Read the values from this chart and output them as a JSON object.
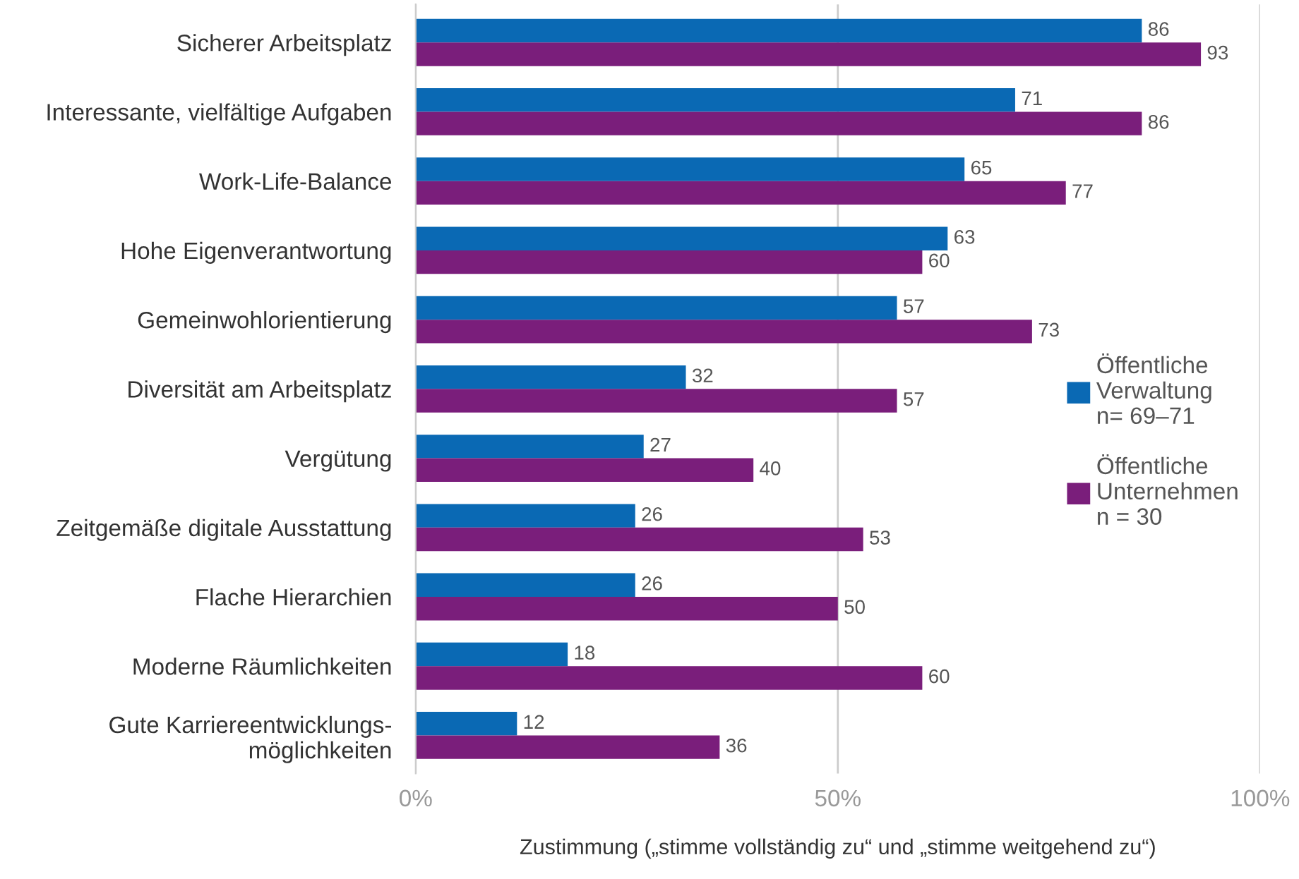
{
  "chart_data": {
    "type": "bar",
    "orientation": "horizontal",
    "categories": [
      "Sicherer Arbeitsplatz",
      "Interessante, vielfältige Aufgaben",
      "Work-Life-Balance",
      "Hohe Eigenverantwortung",
      "Gemeinwohlorientierung",
      "Diversität am Arbeitsplatz",
      "Vergütung",
      "Zeitgemäße digitale Ausstattung",
      "Flache Hierarchien",
      "Moderne Räumlichkeiten",
      "Gute Karriereentwicklungs-\nmöglichkeiten"
    ],
    "series": [
      {
        "name": "Öffentliche\nVerwaltung\nn= 69–71",
        "color": "#0a69b4",
        "values": [
          86,
          71,
          65,
          63,
          57,
          32,
          27,
          26,
          26,
          18,
          12
        ]
      },
      {
        "name": "Öffentliche\nUnternehmen\nn = 30",
        "color": "#7a1e7b",
        "values": [
          93,
          86,
          77,
          60,
          73,
          57,
          40,
          53,
          50,
          60,
          36
        ]
      }
    ],
    "xlim": [
      0,
      100
    ],
    "xticks": [
      {
        "value": 0,
        "label": "0%"
      },
      {
        "value": 50,
        "label": "50%"
      },
      {
        "value": 100,
        "label": "100%"
      }
    ],
    "xlabel": "Zustimmung („stimme vollständig zu“ und „stimme weitgehend zu“)",
    "grid": "x",
    "legend": "right",
    "data_labels": true
  }
}
